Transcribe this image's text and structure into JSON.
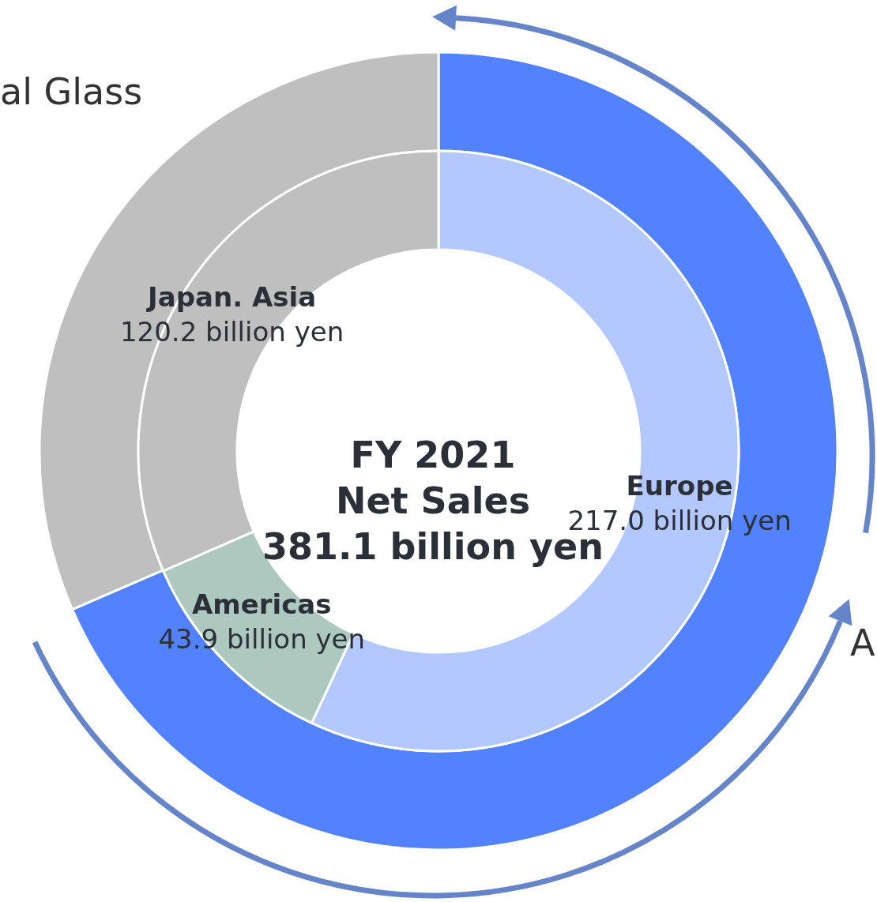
{
  "chart_data": [
    {
      "type": "donut",
      "title": "FY 2021\nNet Sales\n381.1 billion yen",
      "categories": [
        "Europe",
        "Americas",
        "Japan. Asia"
      ],
      "values": [
        217.0,
        43.9,
        120.2
      ],
      "value_labels": [
        "217.0 billion yen",
        "43.9 billion yen",
        "120.2 billion yen"
      ],
      "colors": [
        "#b3c8ff",
        "#acc8bf",
        "#bfbfbf"
      ]
    },
    {
      "type": "donut",
      "categories": [
        null,
        null
      ],
      "values": [
        68.5,
        31.5
      ],
      "colors": [
        "#5282ff",
        "#bfbfbf"
      ],
      "annotations": [
        "al Glass",
        "A"
      ]
    }
  ]
}
